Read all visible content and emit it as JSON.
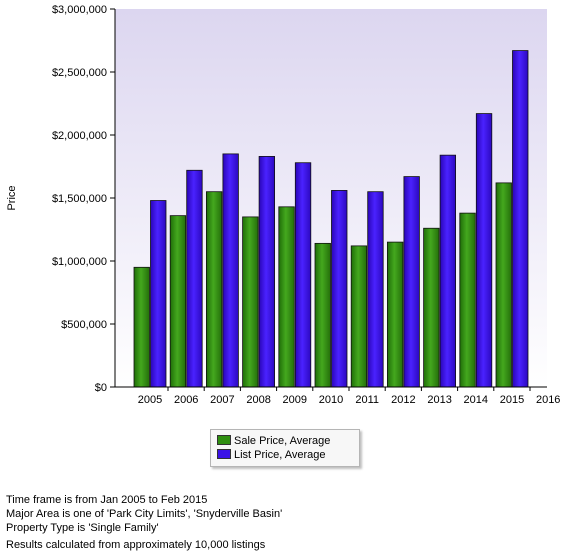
{
  "chart_data": {
    "type": "bar",
    "ylabel": "Price",
    "ylim": [
      0,
      3000000
    ],
    "y_tick_labels": [
      "$3,000,000",
      "$2,500,000",
      "$2,000,000",
      "$1,500,000",
      "$1,000,000",
      "$500,000",
      "$0"
    ],
    "x_tick_labels": [
      "2005",
      "2006",
      "2007",
      "2008",
      "2009",
      "2010",
      "2011",
      "2012",
      "2013",
      "2014",
      "2015",
      "2016"
    ],
    "categories": [
      "2005",
      "2006",
      "2007",
      "2008",
      "2009",
      "2010",
      "2011",
      "2012",
      "2013",
      "2014",
      "2015"
    ],
    "series": [
      {
        "name": "Sale Price, Average",
        "color": "#2f8f10",
        "values": [
          950000,
          1360000,
          1550000,
          1350000,
          1430000,
          1140000,
          1120000,
          1150000,
          1260000,
          1380000,
          1620000
        ]
      },
      {
        "name": "List Price, Average",
        "color": "#3b12e6",
        "values": [
          1480000,
          1720000,
          1850000,
          1830000,
          1780000,
          1560000,
          1550000,
          1670000,
          1840000,
          2170000,
          2670000
        ]
      }
    ],
    "legend_position": "bottom-center",
    "grid": false
  },
  "notes": {
    "line1": "Time frame is from Jan 2005 to Feb 2015",
    "line2": "Major Area is one of 'Park City Limits', 'Snyderville Basin'",
    "line3": "Property Type is 'Single Family'",
    "line4": "Results calculated from approximately 10,000 listings"
  }
}
